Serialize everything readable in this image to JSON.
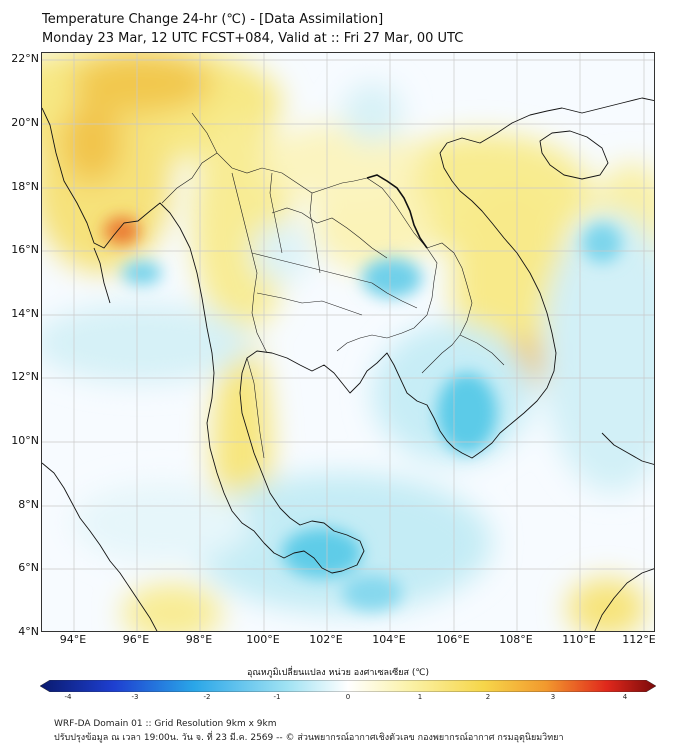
{
  "header": {
    "title": "Temperature Change 24-hr (℃) - [Data Assimilation]",
    "subtitle": "Monday 23 Mar, 12 UTC FCST+084, Valid at :: Fri 27 Mar, 00 UTC"
  },
  "map": {
    "lat_labels": [
      "22°N",
      "20°N",
      "18°N",
      "16°N",
      "14°N",
      "12°N",
      "10°N",
      "8°N",
      "6°N",
      "4°N"
    ],
    "lon_labels": [
      "94°E",
      "96°E",
      "98°E",
      "100°E",
      "102°E",
      "104°E",
      "106°E",
      "108°E",
      "110°E",
      "112°E"
    ],
    "lat_range": [
      4,
      22
    ],
    "lon_range": [
      93,
      112.3
    ],
    "colors": {
      "warm": "#f5e87a",
      "warm_strong": "#f2b43c",
      "hot": "#e8672a",
      "cool": "#bfeaf4",
      "cold": "#5ccbe8",
      "coast": "#111111",
      "grid": "#bbbbbb"
    }
  },
  "colorbar": {
    "label": "อุณหภูมิเปลี่ยนแปลง หน่วย องศาเซลเซียส (℃)",
    "ticks": [
      "-4",
      "-3",
      "-2",
      "-1",
      "0",
      "1",
      "2",
      "3",
      "4"
    ],
    "min": -4,
    "max": 4
  },
  "footer": {
    "line1": "WRF-DA Domain 01 :: Grid Resolution 9km x 9km",
    "line2": "ปรับปรุงข้อมูล ณ เวลา 19:00น. วัน จ. ที่ 23 มี.ค. 2569 -- © ส่วนพยากรณ์อากาศเชิงตัวเลข กองพยากรณ์อากาศ กรมอุตุนิยมวิทยา"
  }
}
